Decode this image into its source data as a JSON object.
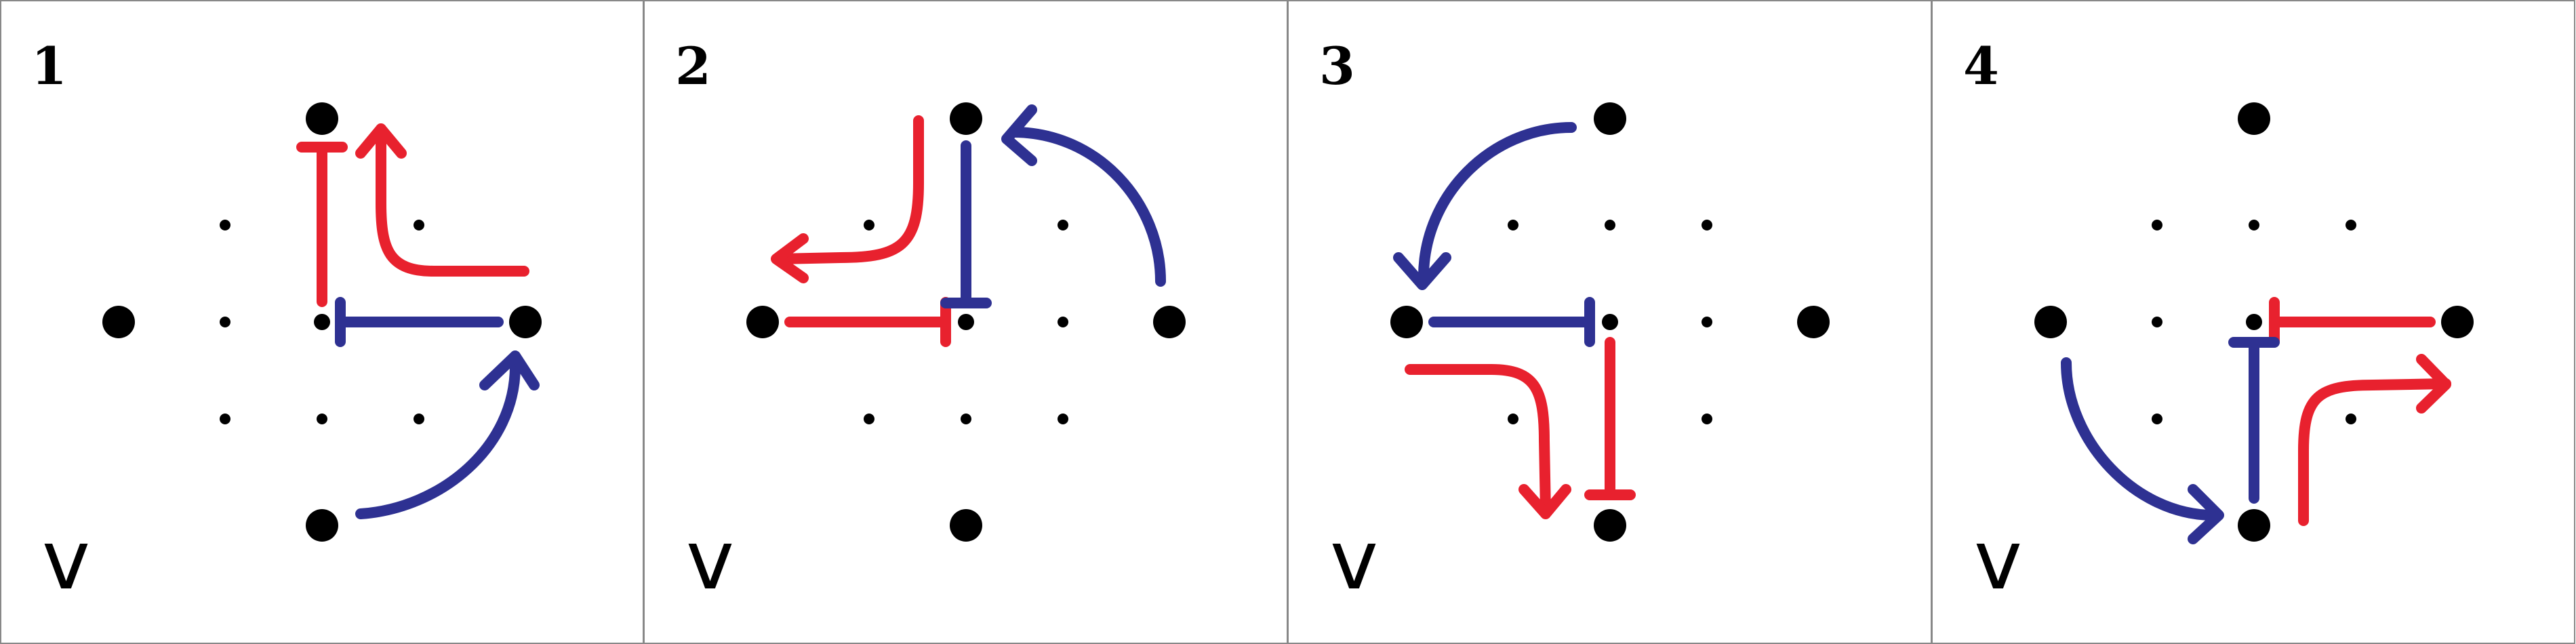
{
  "colors": {
    "red": "#e8212e",
    "blue": "#2e3192",
    "dot": "#000000",
    "border": "#888888",
    "background": "#ffffff"
  },
  "panels": [
    {
      "number": "1",
      "variable": "v"
    },
    {
      "number": "2",
      "variable": "v"
    },
    {
      "number": "3",
      "variable": "v"
    },
    {
      "number": "4",
      "variable": "v"
    }
  ]
}
